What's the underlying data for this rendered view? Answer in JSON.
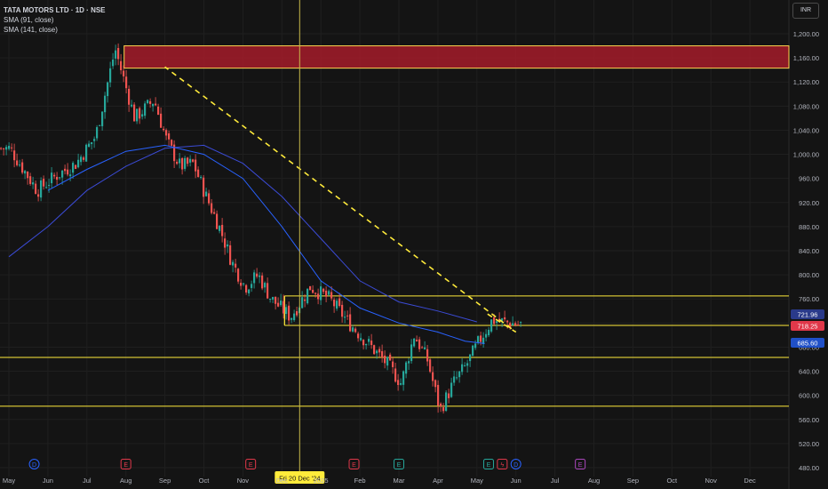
{
  "symbol": {
    "title": "TATA MOTORS LTD · 1D · NSE",
    "indicators": [
      "SMA (91, close)",
      "SMA (141, close)"
    ]
  },
  "currency_button": "INR",
  "crosshair_date_label": "Fri 20 Dec '24",
  "price_badges": [
    {
      "value": "721.96",
      "color": "#2a3a8a"
    },
    {
      "value": "718.25",
      "color": "#e0384a"
    },
    {
      "value": "685.60",
      "color": "#2050c8"
    }
  ],
  "events": [
    {
      "x_label": "Apr",
      "offset": -1,
      "letter": "E",
      "color": "#26a69a"
    },
    {
      "x_label": "Jun",
      "offset": -0.35,
      "letter": "D",
      "color": "#2962ff"
    },
    {
      "x_label": "Aug",
      "offset": 0,
      "letter": "E",
      "color": "#e0384a"
    },
    {
      "x_label": "Nov",
      "offset": 0.2,
      "letter": "E",
      "color": "#e0384a"
    },
    {
      "x_label": "Feb",
      "offset": -0.15,
      "letter": "E",
      "color": "#e0384a"
    },
    {
      "x_label": "May",
      "offset": 0.3,
      "letter": "E",
      "color": "#26a69a"
    },
    {
      "x_label": "May",
      "offset": 0.65,
      "letter": "ϟ",
      "color": "#e0384a"
    },
    {
      "x_label": "Jun",
      "offset": 0,
      "letter": "D",
      "color": "#2962ff"
    },
    {
      "x_label": "Aug",
      "offset": -0.35,
      "letter": "E",
      "color": "#ab47bc"
    }
  ],
  "chart_data": {
    "type": "candlestick",
    "y_ticks": [
      480,
      520,
      560,
      600,
      640,
      680,
      720,
      760,
      800,
      840,
      880,
      920,
      960,
      1000,
      1040,
      1080,
      1120,
      1160,
      1200
    ],
    "y_tick_labels": [
      "480.00",
      "520.00",
      "560.00",
      "600.00",
      "640.00",
      "680.00",
      "720.00",
      "760.00",
      "800.00",
      "840.00",
      "880.00",
      "920.00",
      "960.00",
      "1,000.00",
      "1,040.00",
      "1,080.00",
      "1,120.00",
      "1,160.00",
      "1,200.00"
    ],
    "ylim": [
      470,
      1215
    ],
    "x_labels": [
      "May",
      "Jun",
      "Jul",
      "Aug",
      "Sep",
      "Oct",
      "Nov",
      "Dec",
      "2025",
      "Feb",
      "Mar",
      "Apr",
      "May",
      "Jun",
      "Jul",
      "Aug",
      "Sep",
      "Oct",
      "Nov",
      "Dec"
    ],
    "close_path": [
      [
        "May",
        1010
      ],
      [
        "Jun",
        940
      ],
      [
        "Jun",
        965
      ],
      [
        "Jul",
        985
      ],
      [
        "Jul",
        1030
      ],
      [
        "Aug",
        1175
      ],
      [
        "Aug",
        1060
      ],
      [
        "Sep",
        1090
      ],
      [
        "Sep",
        1020
      ],
      [
        "Sep",
        980
      ],
      [
        "Oct",
        985
      ],
      [
        "Oct",
        930
      ],
      [
        "Oct",
        880
      ],
      [
        "Nov",
        820
      ],
      [
        "Nov",
        780
      ],
      [
        "Nov",
        800
      ],
      [
        "Dec",
        760
      ],
      [
        "Dec",
        730
      ],
      [
        "2025",
        780
      ],
      [
        "2025",
        760
      ],
      [
        "Feb",
        720
      ],
      [
        "Feb",
        685
      ],
      [
        "Mar",
        650
      ],
      [
        "Mar",
        620
      ],
      [
        "Mar",
        700
      ],
      [
        "Apr",
        660
      ],
      [
        "Apr",
        575
      ],
      [
        "Apr",
        620
      ],
      [
        "May",
        650
      ],
      [
        "May",
        690
      ],
      [
        "May",
        725
      ],
      [
        "Jun",
        718
      ]
    ],
    "sma_91": [
      [
        "Jun",
        940
      ],
      [
        "Jul",
        975
      ],
      [
        "Aug",
        1005
      ],
      [
        "Sep",
        1015
      ],
      [
        "Oct",
        1000
      ],
      [
        "Nov",
        960
      ],
      [
        "Dec",
        880
      ],
      [
        "2025",
        790
      ],
      [
        "Feb",
        745
      ],
      [
        "Mar",
        720
      ],
      [
        "Apr",
        705
      ],
      [
        "May",
        690
      ],
      [
        "May",
        686
      ]
    ],
    "sma_141": [
      [
        "May",
        830
      ],
      [
        "Jun",
        880
      ],
      [
        "Jul",
        940
      ],
      [
        "Aug",
        980
      ],
      [
        "Sep",
        1010
      ],
      [
        "Oct",
        1015
      ],
      [
        "Nov",
        985
      ],
      [
        "Dec",
        930
      ],
      [
        "2025",
        860
      ],
      [
        "Feb",
        790
      ],
      [
        "Mar",
        755
      ],
      [
        "Apr",
        740
      ],
      [
        "May",
        722
      ]
    ],
    "supply_zone": {
      "from": "Aug",
      "to": "right-edge",
      "low": 1143,
      "high": 1180
    },
    "horizontal_levels": [
      {
        "price": 765,
        "from": "Dec",
        "to": "right-edge"
      },
      {
        "price": 716,
        "from": "Dec",
        "to": "right-edge"
      },
      {
        "price": 663,
        "from": "left-edge",
        "to": "right-edge"
      },
      {
        "price": 582,
        "from": "left-edge",
        "to": "right-edge"
      }
    ],
    "projection": [
      [
        "May",
        735
      ],
      [
        "Jun",
        705
      ],
      [
        "Sep",
        1145
      ]
    ],
    "crosshair_x": "Dec",
    "colors": {
      "up": "#26a69a",
      "down": "#ef5350",
      "sma91": "#2962ff",
      "sma141": "#3b4bd6",
      "levels": "#ffeb3b",
      "zone_fill": "#b71c2c",
      "zone_border": "#ffd54f",
      "projection": "#ffeb3b"
    }
  }
}
